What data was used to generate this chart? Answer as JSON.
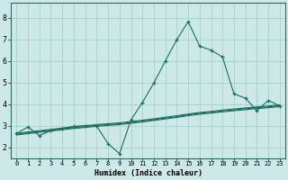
{
  "xlabel": "Humidex (Indice chaleur)",
  "ylabel": "",
  "background_color": "#cce9e8",
  "grid_color": "#afd4d0",
  "line_color": "#1a6e62",
  "xlim": [
    -0.5,
    23.5
  ],
  "ylim": [
    1.5,
    8.7
  ],
  "xticks": [
    0,
    1,
    2,
    3,
    4,
    5,
    6,
    7,
    8,
    9,
    10,
    11,
    12,
    13,
    14,
    15,
    16,
    17,
    18,
    19,
    20,
    21,
    22,
    23
  ],
  "yticks": [
    2,
    3,
    4,
    5,
    6,
    7,
    8
  ],
  "series1_x": [
    0,
    1,
    2,
    3,
    4,
    5,
    6,
    7,
    8,
    9,
    10,
    11,
    12,
    13,
    14,
    15,
    16,
    17,
    18,
    19,
    20,
    21,
    22,
    23
  ],
  "series1_y": [
    2.65,
    2.95,
    2.55,
    2.78,
    2.88,
    2.98,
    3.0,
    3.0,
    2.18,
    1.72,
    3.28,
    4.08,
    4.98,
    6.0,
    6.98,
    7.82,
    6.68,
    6.5,
    6.18,
    4.48,
    4.28,
    3.7,
    4.18,
    3.92
  ],
  "series2_x": [
    0,
    1,
    2,
    3,
    4,
    5,
    6,
    7,
    8,
    9,
    10,
    11,
    12,
    13,
    14,
    15,
    16,
    17,
    18,
    19,
    20,
    21,
    22,
    23
  ],
  "series2_y": [
    2.65,
    2.72,
    2.78,
    2.84,
    2.9,
    2.96,
    3.01,
    3.06,
    3.1,
    3.14,
    3.2,
    3.26,
    3.33,
    3.4,
    3.47,
    3.55,
    3.62,
    3.67,
    3.73,
    3.78,
    3.83,
    3.88,
    3.92,
    3.97
  ],
  "series3_x": [
    0,
    1,
    2,
    3,
    4,
    5,
    6,
    7,
    8,
    9,
    10,
    11,
    12,
    13,
    14,
    15,
    16,
    17,
    18,
    19,
    20,
    21,
    22,
    23
  ],
  "series3_y": [
    2.62,
    2.68,
    2.74,
    2.8,
    2.86,
    2.92,
    2.97,
    3.02,
    3.06,
    3.1,
    3.16,
    3.22,
    3.29,
    3.36,
    3.43,
    3.51,
    3.58,
    3.63,
    3.69,
    3.74,
    3.79,
    3.84,
    3.88,
    3.93
  ],
  "series4_x": [
    0,
    1,
    2,
    3,
    4,
    5,
    6,
    7,
    8,
    9,
    10,
    11,
    12,
    13,
    14,
    15,
    16,
    17,
    18,
    19,
    20,
    21,
    22,
    23
  ],
  "series4_y": [
    2.58,
    2.64,
    2.7,
    2.76,
    2.82,
    2.88,
    2.93,
    2.98,
    3.02,
    3.06,
    3.12,
    3.18,
    3.25,
    3.32,
    3.39,
    3.47,
    3.54,
    3.59,
    3.65,
    3.7,
    3.75,
    3.8,
    3.84,
    3.89
  ]
}
